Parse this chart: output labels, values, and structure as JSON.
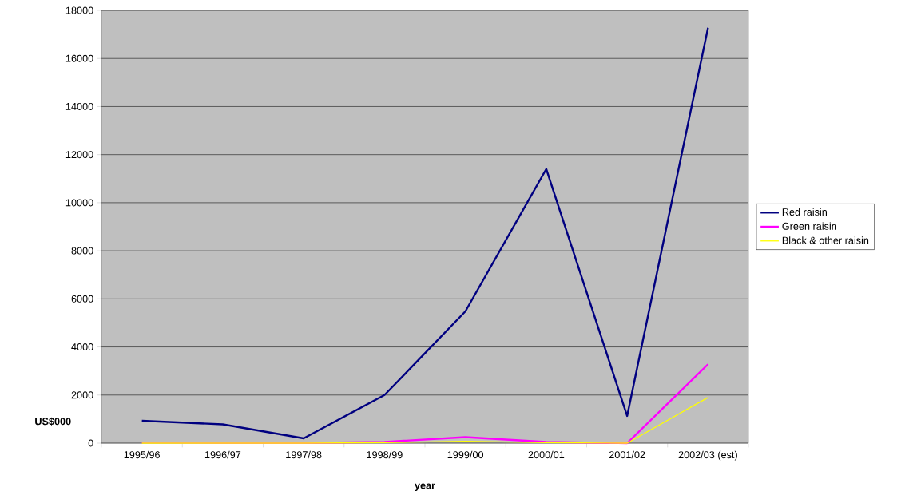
{
  "chart_data": {
    "type": "line",
    "xlabel": "year",
    "ylabel": "US$000",
    "categories": [
      "1995/96",
      "1996/97",
      "1997/98",
      "1998/99",
      "1999/00",
      "2000/01",
      "2001/02",
      "2002/03 (est)"
    ],
    "series": [
      {
        "name": "Red raisin",
        "color": "#000080",
        "values": [
          930,
          780,
          200,
          2000,
          5480,
          11400,
          1130,
          17280
        ]
      },
      {
        "name": "Green raisin",
        "color": "#ff00ff",
        "values": [
          30,
          10,
          10,
          50,
          250,
          50,
          0,
          3280
        ]
      },
      {
        "name": "Black & other raisin",
        "color": "#ffff00",
        "values": [
          0,
          null,
          0,
          20,
          80,
          20,
          0,
          1900
        ]
      }
    ],
    "ylim": [
      0,
      18000
    ],
    "yticks": [
      0,
      2000,
      4000,
      6000,
      8000,
      10000,
      12000,
      14000,
      16000,
      18000
    ],
    "grid": "y",
    "legend": "right",
    "marker": "none",
    "line_style": "solid"
  }
}
